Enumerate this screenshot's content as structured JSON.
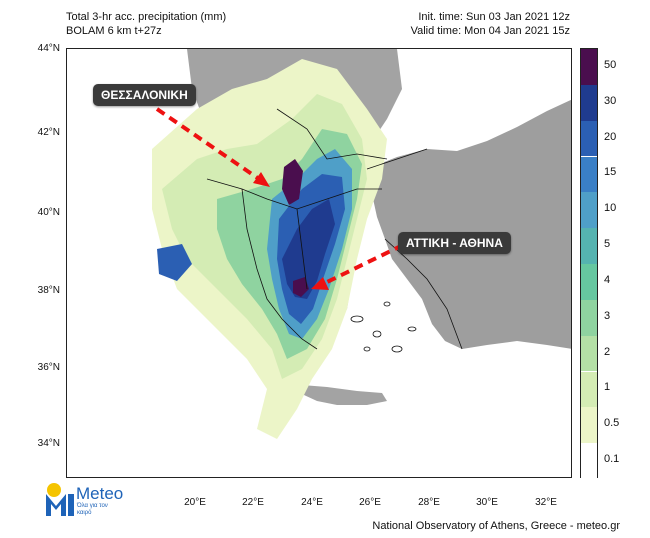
{
  "header": {
    "line1_left": "Total 3-hr acc. precipitation (mm)",
    "line2_left": "BOLAM 6 km t+27z",
    "line1_right": "Init. time: Sun 03 Jan 2021 12z",
    "line2_right": "Valid time: Mon 04 Jan 2021 15z"
  },
  "axes": {
    "lat_labels": [
      "44°N",
      "42°N",
      "40°N",
      "38°N",
      "36°N",
      "34°N"
    ],
    "lon_labels": [
      "20°E",
      "22°E",
      "24°E",
      "26°E",
      "28°E",
      "30°E",
      "32°E"
    ]
  },
  "colorbar": {
    "labels": [
      "50",
      "30",
      "20",
      "15",
      "10",
      "5",
      "4",
      "3",
      "2",
      "1",
      "0.5",
      "0.1"
    ],
    "colors": [
      "#4a0e4e",
      "#1f3b8f",
      "#2b5fb3",
      "#3a7fc6",
      "#4f9fc8",
      "#55b3b0",
      "#66c7a0",
      "#8fd3a0",
      "#b4e0a6",
      "#d4ecb4",
      "#ecf5c8",
      "#ffffff"
    ]
  },
  "callouts": {
    "thessaloniki": "ΘΕΣΣΑΛΟΝΙΚΗ",
    "attiki": "ΑΤΤΙΚΗ - ΑΘΗΝΑ"
  },
  "logo": {
    "name": "Meteo",
    "tagline": "Όλα για τον καιρό",
    "icon": "meteo-logo-icon",
    "brand_color": "#1e63b8"
  },
  "footer": "National Observatory of Athens, Greece - meteo.gr"
}
